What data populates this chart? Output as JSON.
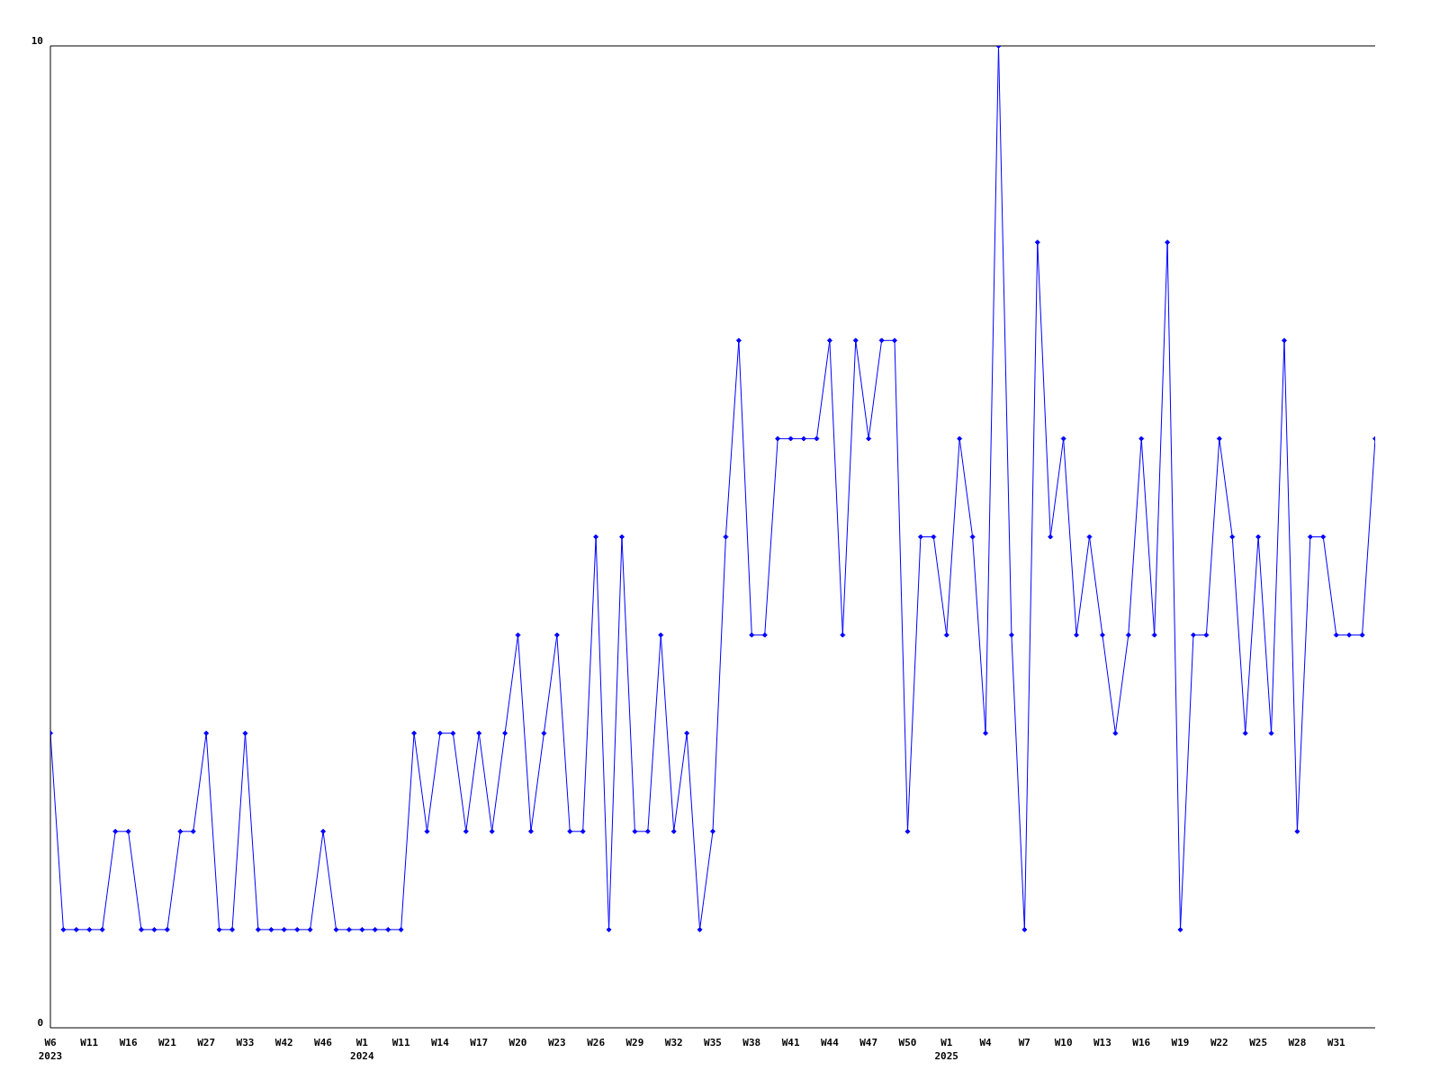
{
  "chart_data": {
    "type": "line",
    "categories": [
      "W6\n2023",
      null,
      null,
      "W11",
      null,
      null,
      "W16",
      null,
      null,
      "W21",
      null,
      null,
      "W27",
      null,
      null,
      "W33",
      null,
      null,
      "W42",
      null,
      null,
      "W46",
      null,
      null,
      "W1\n2024",
      null,
      null,
      "W11",
      null,
      null,
      "W14",
      null,
      null,
      "W17",
      null,
      null,
      "W20",
      null,
      null,
      "W23",
      null,
      null,
      "W26",
      null,
      null,
      "W29",
      null,
      null,
      "W32",
      null,
      null,
      "W35",
      null,
      null,
      "W38",
      null,
      null,
      "W41",
      null,
      null,
      "W44",
      null,
      null,
      "W47",
      null,
      null,
      "W50",
      null,
      null,
      "W1\n2025",
      null,
      null,
      "W4",
      null,
      null,
      "W7",
      null,
      null,
      "W10",
      null,
      null,
      "W13",
      null,
      null,
      "W16",
      null,
      null,
      "W19",
      null,
      null,
      "W22",
      null,
      null,
      "W25",
      null,
      null,
      "W28",
      null,
      null,
      "W31",
      null,
      null,
      null
    ],
    "series": [
      {
        "color": "#0000ff",
        "values": [
          3,
          1,
          1,
          1,
          1,
          2,
          2,
          1,
          1,
          1,
          2,
          2,
          3,
          1,
          1,
          3,
          1,
          1,
          1,
          1,
          1,
          2,
          1,
          1,
          1,
          1,
          1,
          1,
          3,
          2,
          3,
          3,
          2,
          3,
          2,
          3,
          4,
          2,
          3,
          4,
          2,
          2,
          5,
          1,
          5,
          2,
          2,
          4,
          2,
          3,
          1,
          2,
          5,
          7,
          4,
          4,
          6,
          6,
          6,
          6,
          7,
          4,
          7,
          6,
          7,
          7,
          2,
          5,
          5,
          4,
          6,
          5,
          3,
          10,
          4,
          1,
          8,
          5,
          6,
          4,
          5,
          4,
          3,
          4,
          6,
          4,
          8,
          1,
          4,
          4,
          6,
          5,
          3,
          5,
          3,
          7,
          2,
          5,
          5,
          4,
          4,
          4,
          6
        ]
      }
    ],
    "ylim": [
      0,
      10
    ],
    "yticks": [
      0,
      10
    ],
    "grid": false,
    "legend": false,
    "marker": "diamond",
    "line_style": "solid"
  }
}
